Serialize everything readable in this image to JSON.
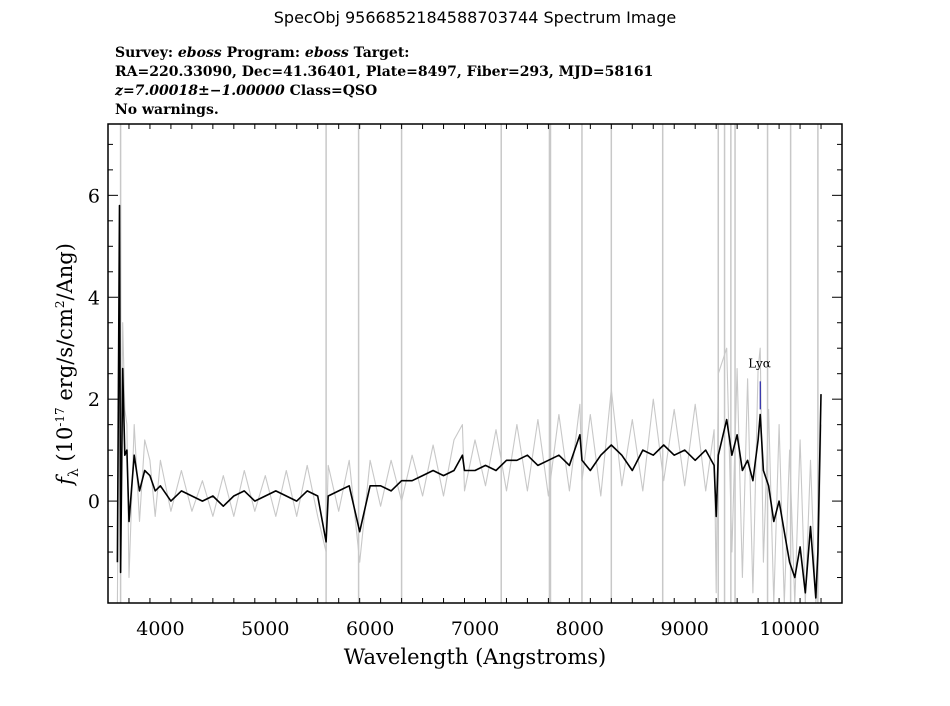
{
  "header": {
    "title": "SpecObj 9566852184588703744 Spectrum Image",
    "survey_label": "Survey:",
    "survey": "eboss",
    "program_label": "Program:",
    "program": "eboss",
    "target_label": "Target:",
    "coords": "RA=220.33090, Dec=41.36401, Plate=8497, Fiber=293, MJD=58161",
    "redshift": "z=7.00018±−1.00000",
    "class": "Class=QSO",
    "warnings": "No warnings."
  },
  "chart_data": {
    "type": "line",
    "title": "",
    "xlabel": "Wavelength (Angstroms)",
    "ylabel": "f_λ (10^-17 erg/s/cm^2/Ang)",
    "xlim": [
      3500,
      10500
    ],
    "ylim": [
      -2,
      7.4
    ],
    "xticks": [
      4000,
      5000,
      6000,
      7000,
      8000,
      9000,
      10000
    ],
    "yticks": [
      0,
      2,
      4,
      6
    ],
    "xtick_labels": [
      "4000",
      "5000",
      "6000",
      "7000",
      "8000",
      "9000",
      "10000"
    ],
    "ytick_labels": [
      "0",
      "2",
      "4",
      "6"
    ],
    "line_annotation": {
      "label": "Lyα",
      "x": 9720,
      "y_top": 2.35,
      "y_bottom": 1.8
    },
    "series": [
      {
        "role": "flux",
        "color": "#000000",
        "x": [
          3590,
          3610,
          3620,
          3640,
          3660,
          3680,
          3700,
          3750,
          3800,
          3850,
          3900,
          3950,
          4000,
          4100,
          4200,
          4300,
          4400,
          4500,
          4600,
          4700,
          4800,
          4900,
          5000,
          5100,
          5200,
          5300,
          5400,
          5500,
          5580,
          5600,
          5700,
          5800,
          5900,
          6000,
          6100,
          6200,
          6300,
          6400,
          6500,
          6600,
          6700,
          6800,
          6880,
          6900,
          7000,
          7100,
          7200,
          7300,
          7400,
          7500,
          7600,
          7700,
          7800,
          7900,
          8000,
          8020,
          8100,
          8200,
          8300,
          8400,
          8500,
          8600,
          8700,
          8800,
          8900,
          9000,
          9100,
          9200,
          9280,
          9300,
          9320,
          9400,
          9450,
          9500,
          9550,
          9600,
          9650,
          9700,
          9720,
          9750,
          9800,
          9850,
          9900,
          9950,
          10000,
          10050,
          10100,
          10150,
          10200,
          10250,
          10270,
          10300
        ],
        "y": [
          -1.2,
          5.8,
          -1.4,
          2.6,
          0.9,
          1.0,
          -0.4,
          0.9,
          0.2,
          0.6,
          0.5,
          0.2,
          0.3,
          0.0,
          0.2,
          0.1,
          0.0,
          0.1,
          -0.1,
          0.1,
          0.2,
          0.0,
          0.1,
          0.2,
          0.1,
          0.0,
          0.2,
          0.1,
          -0.8,
          0.1,
          0.2,
          0.3,
          -0.6,
          0.3,
          0.3,
          0.2,
          0.4,
          0.4,
          0.5,
          0.6,
          0.5,
          0.6,
          0.9,
          0.6,
          0.6,
          0.7,
          0.6,
          0.8,
          0.8,
          0.9,
          0.7,
          0.8,
          0.9,
          0.7,
          1.3,
          0.8,
          0.6,
          0.9,
          1.1,
          0.9,
          0.6,
          1.0,
          0.9,
          1.1,
          0.9,
          1.0,
          0.8,
          1.0,
          0.7,
          -0.3,
          0.9,
          1.6,
          0.9,
          1.3,
          0.6,
          0.8,
          0.4,
          1.2,
          1.7,
          0.6,
          0.3,
          -0.4,
          0.0,
          -0.6,
          -1.2,
          -1.5,
          -0.9,
          -1.8,
          -0.5,
          -1.9,
          -1.0,
          2.1
        ]
      },
      {
        "role": "error",
        "color": "#c8c8c8",
        "x": [
          3590,
          3610,
          3620,
          3640,
          3660,
          3680,
          3700,
          3750,
          3800,
          3850,
          3900,
          3950,
          4000,
          4100,
          4200,
          4300,
          4400,
          4500,
          4600,
          4700,
          4800,
          4900,
          5000,
          5100,
          5200,
          5300,
          5400,
          5500,
          5580,
          5600,
          5700,
          5800,
          5900,
          6000,
          6100,
          6200,
          6300,
          6400,
          6500,
          6600,
          6700,
          6800,
          6880,
          6900,
          7000,
          7100,
          7200,
          7300,
          7400,
          7500,
          7600,
          7700,
          7800,
          7900,
          8000,
          8020,
          8100,
          8200,
          8300,
          8400,
          8500,
          8600,
          8700,
          8800,
          8900,
          9000,
          9100,
          9200,
          9280,
          9300,
          9320,
          9400,
          9450,
          9500,
          9550,
          9600,
          9650,
          9700,
          9720,
          9750,
          9800,
          9850,
          9900,
          9950,
          10000,
          10050,
          10100,
          10150,
          10200,
          10250,
          10270,
          10300
        ],
        "y": [
          -2.0,
          4.2,
          -0.5,
          3.5,
          1.8,
          1.5,
          -1.5,
          1.5,
          -0.4,
          1.2,
          0.8,
          -0.3,
          0.8,
          -0.2,
          0.6,
          -0.2,
          0.4,
          -0.3,
          0.5,
          -0.3,
          0.6,
          -0.2,
          0.5,
          -0.3,
          0.6,
          -0.3,
          0.7,
          -0.3,
          -1.0,
          0.7,
          -0.2,
          0.8,
          -1.2,
          0.8,
          -0.1,
          0.8,
          0.0,
          0.9,
          0.1,
          1.1,
          0.1,
          1.2,
          1.5,
          0.2,
          1.2,
          0.3,
          1.4,
          0.2,
          1.5,
          0.2,
          1.6,
          0.1,
          1.7,
          0.2,
          1.9,
          0.4,
          1.7,
          0.1,
          2.2,
          0.3,
          1.6,
          0.2,
          2.0,
          0.4,
          1.8,
          0.3,
          1.9,
          0.2,
          1.4,
          -1.8,
          2.5,
          3.0,
          -1.0,
          2.6,
          -1.5,
          2.4,
          -1.8,
          2.6,
          3.0,
          -1.2,
          1.8,
          -2.0,
          1.5,
          -2.0,
          1.0,
          -2.0,
          1.2,
          -2.0,
          0.8,
          -2.0,
          -1.6,
          1.5
        ]
      }
    ],
    "sky_lines_x": [
      3620,
      5580,
      5890,
      6300,
      7250,
      7710,
      7720,
      8020,
      8300,
      8790,
      9320,
      9380,
      9440,
      9480,
      9790,
      10010,
      10270
    ]
  }
}
